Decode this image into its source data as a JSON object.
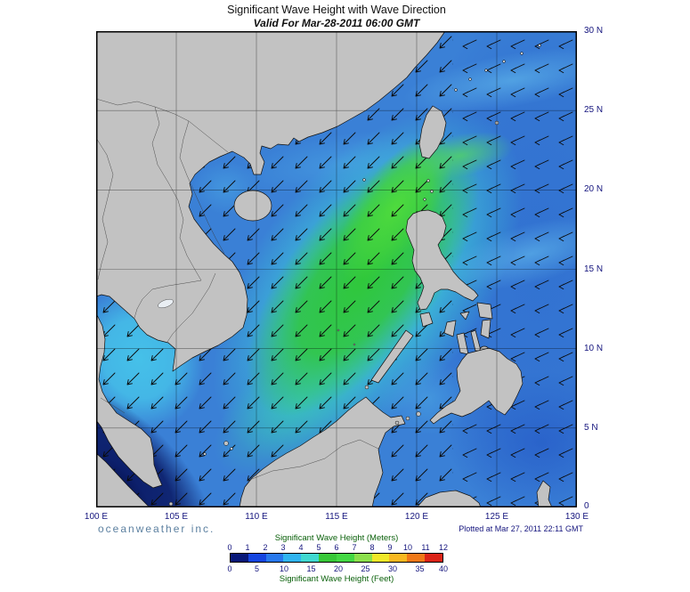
{
  "header": {
    "title": "Significant Wave Height with Wave Direction",
    "subtitle": "Valid For Mar-28-2011 06:00 GMT"
  },
  "axes": {
    "lat": [
      "30 N",
      "25 N",
      "20 N",
      "15 N",
      "10 N",
      "5 N",
      "0"
    ],
    "lon": [
      "100 E",
      "105 E",
      "110 E",
      "115 E",
      "120 E",
      "125 E",
      "130 E"
    ]
  },
  "legend": {
    "meters_title": "Significant Wave Height (Meters)",
    "feet_title": "Significant Wave Height (Feet)",
    "meters_ticks": [
      "0",
      "1",
      "2",
      "3",
      "4",
      "5",
      "6",
      "7",
      "8",
      "9",
      "10",
      "11",
      "12"
    ],
    "feet_ticks": [
      "0",
      "5",
      "10",
      "15",
      "20",
      "25",
      "30",
      "35",
      "40"
    ],
    "colors": [
      "#081878",
      "#1545e0",
      "#2878ec",
      "#30b4f0",
      "#40d8d0",
      "#38c838",
      "#44d844",
      "#8ce04c",
      "#f0e828",
      "#f8b820",
      "#f07818",
      "#dc2418"
    ]
  },
  "footer": {
    "branding": "oceanweather inc.",
    "plotted": "Plotted at Mar 27, 2011 22:11 GMT"
  }
}
